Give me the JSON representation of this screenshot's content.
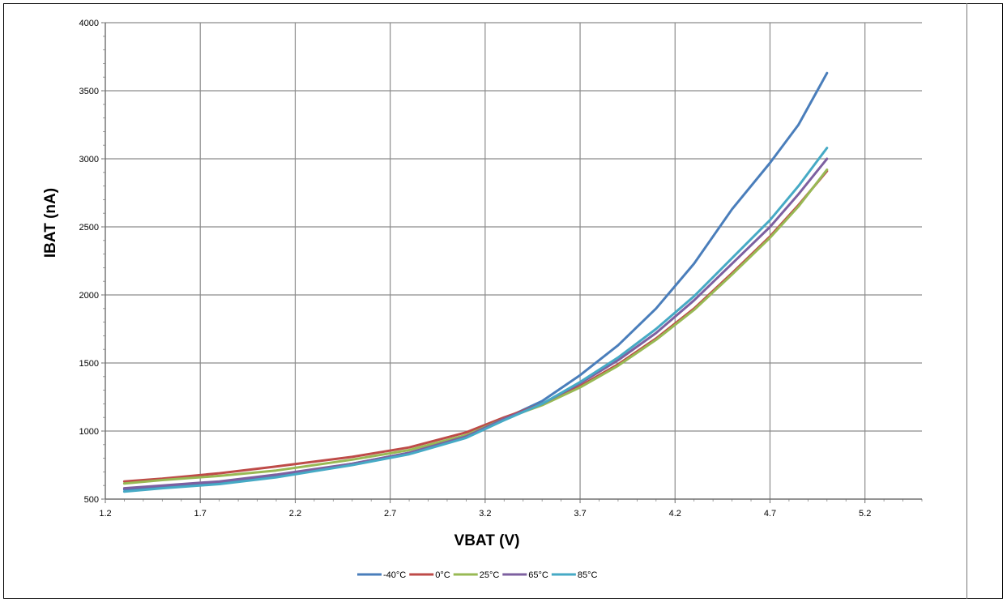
{
  "chart_data": {
    "type": "line",
    "title": "",
    "xlabel": "VBAT (V)",
    "ylabel": "IBAT (nA)",
    "xlim": [
      1.2,
      5.5
    ],
    "ylim": [
      500,
      4000
    ],
    "x_ticks": [
      "1.2",
      "1.7",
      "2.2",
      "2.7",
      "3.2",
      "3.7",
      "4.2",
      "4.7",
      "5.2"
    ],
    "y_ticks": [
      "500",
      "1000",
      "1500",
      "2000",
      "2500",
      "3000",
      "3500",
      "4000"
    ],
    "grid": true,
    "legend_position": "bottom",
    "series": [
      {
        "name": "-40°C",
        "color": "#4a7ebb",
        "x": [
          1.3,
          1.5,
          1.8,
          2.1,
          2.5,
          2.8,
          3.1,
          3.3,
          3.5,
          3.7,
          3.9,
          4.1,
          4.3,
          4.5,
          4.7,
          4.85,
          5.0
        ],
        "y": [
          570,
          590,
          620,
          670,
          760,
          840,
          960,
          1090,
          1220,
          1410,
          1630,
          1900,
          2230,
          2630,
          2970,
          3250,
          3630
        ]
      },
      {
        "name": "0°C",
        "color": "#be4b48",
        "x": [
          1.3,
          1.5,
          1.8,
          2.1,
          2.5,
          2.8,
          3.1,
          3.3,
          3.5,
          3.7,
          3.9,
          4.1,
          4.3,
          4.5,
          4.7,
          4.85,
          5.0
        ],
        "y": [
          630,
          650,
          690,
          740,
          810,
          880,
          990,
          1100,
          1200,
          1330,
          1490,
          1680,
          1900,
          2160,
          2430,
          2660,
          2910
        ]
      },
      {
        "name": "25°C",
        "color": "#98b954",
        "x": [
          1.3,
          1.5,
          1.8,
          2.1,
          2.5,
          2.8,
          3.1,
          3.3,
          3.5,
          3.7,
          3.9,
          4.1,
          4.3,
          4.5,
          4.7,
          4.85,
          5.0
        ],
        "y": [
          615,
          640,
          670,
          710,
          790,
          860,
          970,
          1090,
          1190,
          1320,
          1480,
          1670,
          1890,
          2150,
          2420,
          2650,
          2920
        ]
      },
      {
        "name": "65°C",
        "color": "#7d60a0",
        "x": [
          1.3,
          1.5,
          1.8,
          2.1,
          2.5,
          2.8,
          3.1,
          3.3,
          3.5,
          3.7,
          3.9,
          4.1,
          4.3,
          4.5,
          4.7,
          4.85,
          5.0
        ],
        "y": [
          580,
          600,
          630,
          680,
          760,
          840,
          960,
          1090,
          1200,
          1350,
          1520,
          1720,
          1960,
          2230,
          2500,
          2740,
          3000
        ]
      },
      {
        "name": "85°C",
        "color": "#46aac5",
        "x": [
          1.3,
          1.5,
          1.8,
          2.1,
          2.5,
          2.8,
          3.1,
          3.3,
          3.5,
          3.7,
          3.9,
          4.1,
          4.3,
          4.5,
          4.7,
          4.85,
          5.0
        ],
        "y": [
          555,
          580,
          610,
          660,
          750,
          830,
          950,
          1080,
          1200,
          1360,
          1540,
          1750,
          1990,
          2270,
          2550,
          2800,
          3080
        ]
      }
    ]
  }
}
